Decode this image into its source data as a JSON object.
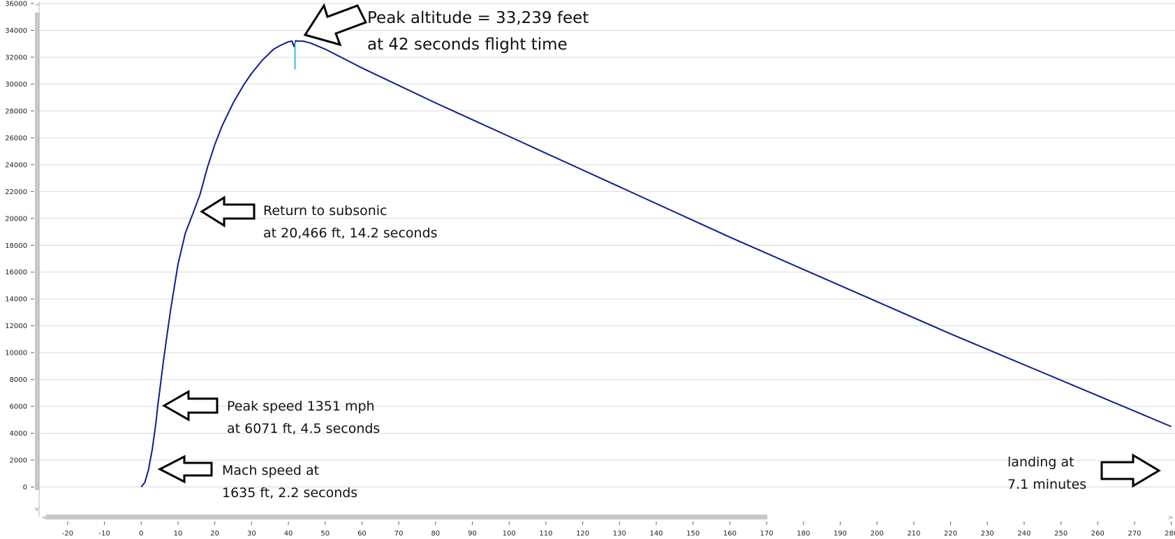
{
  "chart_data": {
    "type": "line",
    "xlim": [
      -27,
      281
    ],
    "ylim": [
      -2000,
      36000
    ],
    "grid": true,
    "legend": "none",
    "x_ticks": [
      -20,
      -10,
      0,
      10,
      20,
      30,
      40,
      50,
      60,
      70,
      80,
      90,
      100,
      110,
      120,
      130,
      140,
      150,
      160,
      170,
      180,
      190,
      200,
      210,
      220,
      230,
      240,
      250,
      260,
      270,
      280
    ],
    "y_ticks": [
      0,
      2000,
      4000,
      6000,
      8000,
      10000,
      12000,
      14000,
      16000,
      18000,
      20000,
      22000,
      24000,
      26000,
      28000,
      30000,
      32000,
      34000,
      36000
    ],
    "series": [
      {
        "color": "#0b1f8c",
        "x": [
          0,
          1,
          2,
          2.2,
          3,
          4,
          4.5,
          5,
          6,
          7,
          8,
          10,
          12,
          14.2,
          16,
          18,
          20,
          22,
          25,
          28,
          30,
          33,
          36,
          38,
          40,
          41,
          41.5,
          42,
          42.5,
          44,
          46,
          50,
          60,
          80,
          100,
          120,
          140,
          160,
          180,
          200,
          220,
          240,
          260,
          280
        ],
        "y": [
          0,
          350,
          1300,
          1635,
          2800,
          4800,
          6071,
          7100,
          9300,
          11300,
          13200,
          16600,
          18900,
          20466,
          21800,
          23800,
          25500,
          26900,
          28600,
          30000,
          30800,
          31800,
          32600,
          32900,
          33150,
          33200,
          32800,
          33239,
          33200,
          33200,
          33050,
          32600,
          31200,
          28600,
          26100,
          23600,
          21100,
          18600,
          16200,
          13800,
          11400,
          9100,
          6800,
          4500
        ]
      },
      {
        "color": "#18a8d8",
        "x": [
          41.8,
          41.8
        ],
        "y": [
          33200,
          31100
        ]
      }
    ],
    "annotations": [
      {
        "line1": "Peak altitude = 33,239 feet",
        "line2": "at 42 seconds flight time"
      },
      {
        "line1": "Return to subsonic",
        "line2": "at 20,466 ft, 14.2 seconds"
      },
      {
        "line1": "Peak speed 1351 mph",
        "line2": "at 6071 ft, 4.5 seconds"
      },
      {
        "line1": "Mach speed at",
        "line2": "1635 ft, 2.2 seconds"
      },
      {
        "line1": "landing at",
        "line2": "7.1 minutes"
      }
    ]
  }
}
